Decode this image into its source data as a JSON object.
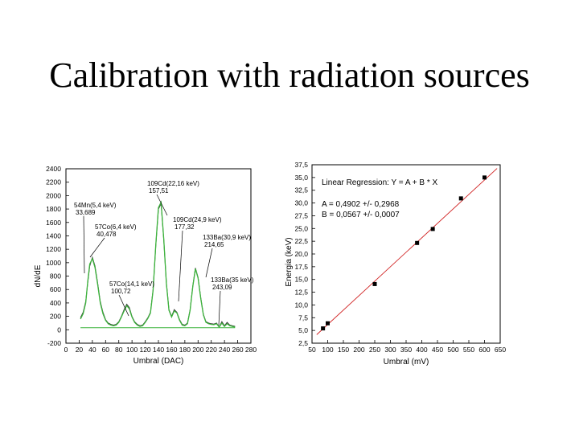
{
  "slide": {
    "title": "Calibration with radiation sources"
  },
  "chart_data": [
    {
      "type": "line",
      "xlabel": "Umbral (DAC)",
      "ylabel": "dN/dE",
      "xlim": [
        0,
        280
      ],
      "ylim": [
        -200,
        2400
      ],
      "xticks": [
        0,
        20,
        40,
        60,
        80,
        100,
        120,
        140,
        160,
        180,
        200,
        220,
        240,
        260,
        280
      ],
      "yticks": [
        -200,
        0,
        200,
        400,
        600,
        800,
        1000,
        1200,
        1400,
        1600,
        1800,
        2000,
        2200,
        2400
      ],
      "grid": false,
      "series": [
        {
          "x": [
            22,
            26,
            30,
            33,
            36,
            40,
            44,
            48,
            52,
            56,
            60,
            64,
            68,
            72,
            76,
            80,
            84,
            88,
            92,
            96,
            100,
            104,
            108,
            112,
            116,
            120,
            124,
            128,
            132,
            136,
            140,
            144,
            148,
            152,
            156,
            160,
            164,
            168,
            172,
            176,
            180,
            184,
            188,
            192,
            196,
            200,
            204,
            208,
            212,
            216,
            220,
            224,
            228,
            232,
            236,
            240,
            244,
            248,
            252,
            256
          ],
          "values": [
            180,
            260,
            420,
            700,
            950,
            1080,
            950,
            700,
            420,
            260,
            150,
            100,
            80,
            70,
            80,
            120,
            200,
            300,
            380,
            330,
            200,
            120,
            80,
            60,
            70,
            120,
            180,
            260,
            600,
            1250,
            1800,
            1880,
            1350,
            700,
            300,
            200,
            300,
            260,
            150,
            80,
            70,
            100,
            300,
            650,
            920,
            780,
            480,
            230,
            120,
            100,
            90,
            85,
            100,
            40,
            120,
            60,
            110,
            70,
            60,
            50
          ]
        },
        {
          "x": [
            22,
            26,
            30,
            33,
            36,
            40,
            44,
            48,
            52,
            56,
            60,
            64,
            68,
            72,
            76,
            80,
            84,
            88,
            92,
            96,
            100,
            104,
            108,
            112,
            116,
            120,
            124,
            128,
            132,
            136,
            140,
            144,
            148,
            152,
            156,
            160,
            164,
            168,
            172,
            176,
            180,
            184,
            188,
            192,
            196,
            200,
            204,
            208,
            212,
            216,
            220,
            224,
            228,
            232,
            236,
            240,
            244,
            248,
            252,
            256
          ],
          "values": [
            160,
            240,
            400,
            720,
            980,
            1060,
            930,
            680,
            400,
            240,
            140,
            90,
            70,
            60,
            70,
            110,
            190,
            280,
            360,
            310,
            190,
            110,
            70,
            50,
            60,
            110,
            170,
            250,
            590,
            1260,
            1820,
            1900,
            1360,
            690,
            290,
            190,
            280,
            250,
            140,
            70,
            60,
            90,
            290,
            640,
            910,
            770,
            470,
            220,
            110,
            90,
            80,
            75,
            90,
            40,
            100,
            50,
            90,
            60,
            50,
            40
          ]
        }
      ],
      "annotations": [
        {
          "label": "54Mn(5,4 keV)",
          "value": "33,689",
          "x": 33.689
        },
        {
          "label": "57Co(6,4 keV)",
          "value": "40,478",
          "x": 40.478
        },
        {
          "label": "57Co(14,1 keV)",
          "value": "100,72",
          "x": 100.72
        },
        {
          "label": "109Cd(22,16 keV)",
          "value": "157,51",
          "x": 157.51
        },
        {
          "label": "109Cd(24,9 keV)",
          "value": "177,32",
          "x": 177.32
        },
        {
          "label": "133Ba(30,9 keV)",
          "value": "214,65",
          "x": 214.65
        },
        {
          "label": "133Ba(35 keV)",
          "value": "243,09",
          "x": 243.09
        }
      ]
    },
    {
      "type": "scatter",
      "title": "",
      "xlabel": "Umbral (mV)",
      "ylabel": "Energia (keV)",
      "xlim": [
        50,
        650
      ],
      "ylim": [
        2.5,
        37.5
      ],
      "xticks": [
        50,
        100,
        150,
        200,
        250,
        300,
        350,
        400,
        450,
        500,
        550,
        600,
        650
      ],
      "yticks": [
        2.5,
        5.0,
        7.5,
        10.0,
        12.5,
        15.0,
        17.5,
        20.0,
        22.5,
        25.0,
        27.5,
        30.0,
        32.5,
        35.0,
        37.5
      ],
      "ytick_labels": [
        "2,5",
        "5,0",
        "7,5",
        "10,0",
        "12,5",
        "15,0",
        "17,5",
        "20,0",
        "22,5",
        "25,0",
        "27,5",
        "30,0",
        "32,5",
        "35,0",
        "37,5"
      ],
      "legend": {
        "title": "Linear Regression: Y = A + B * X",
        "lines": [
          "A = 0,4902 +/- 0,2968",
          "B = 0,0567 +/- 0,0007"
        ],
        "position": "top-left"
      },
      "fit": {
        "intercept": 0.4902,
        "slope": 0.0567
      },
      "points": {
        "x": [
          85,
          100,
          250,
          385,
          435,
          525,
          600
        ],
        "values": [
          5.4,
          6.4,
          14.1,
          22.16,
          24.9,
          30.9,
          35.0
        ]
      }
    }
  ]
}
